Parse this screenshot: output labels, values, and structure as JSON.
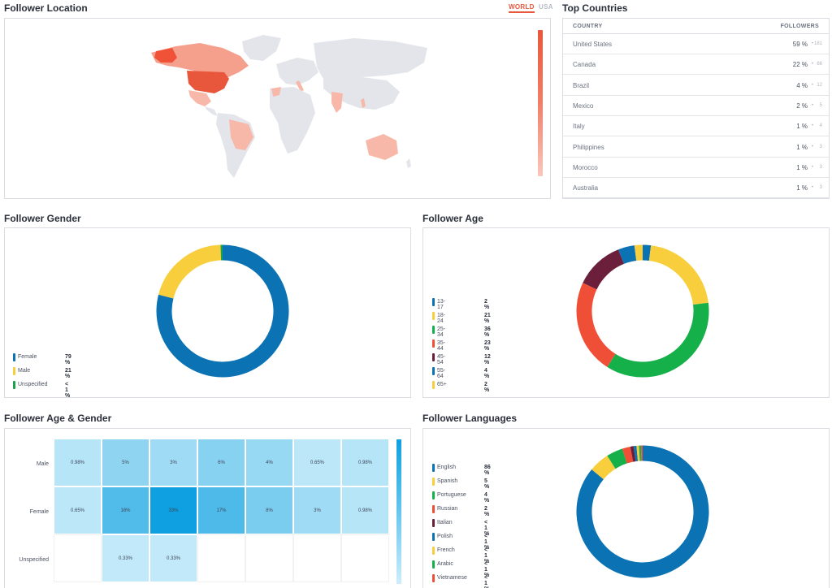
{
  "location": {
    "title": "Follower Location",
    "toggle_world": "WORLD",
    "toggle_usa": "USA"
  },
  "countries": {
    "title": "Top Countries",
    "col_country": "COUNTRY",
    "col_followers": "FOLLOWERS",
    "rows": [
      {
        "name": "United States",
        "pct": "59 %",
        "count": "181"
      },
      {
        "name": "Canada",
        "pct": "22 %",
        "count": "66"
      },
      {
        "name": "Brazil",
        "pct": "4 %",
        "count": "12"
      },
      {
        "name": "Mexico",
        "pct": "2 %",
        "count": "5"
      },
      {
        "name": "Italy",
        "pct": "1 %",
        "count": "4"
      },
      {
        "name": "Philippines",
        "pct": "1 %",
        "count": "3"
      },
      {
        "name": "Morocco",
        "pct": "1 %",
        "count": "3"
      },
      {
        "name": "Australia",
        "pct": "1 %",
        "count": "3"
      }
    ]
  },
  "gender": {
    "title": "Follower Gender",
    "legend": [
      {
        "label": "Female",
        "value": "79 %",
        "color": "#0b73b3"
      },
      {
        "label": "Male",
        "value": "21 %",
        "color": "#f9ce3d"
      },
      {
        "label": "Unspecified",
        "value": "< 1 %",
        "color": "#16a34a"
      }
    ],
    "slices": [
      79,
      20.5,
      0.5
    ]
  },
  "age": {
    "title": "Follower Age",
    "legend": [
      {
        "label": "13-17",
        "value": "2 %",
        "color": "#0b73b3"
      },
      {
        "label": "18-24",
        "value": "21 %",
        "color": "#f9ce3d"
      },
      {
        "label": "25-34",
        "value": "36 %",
        "color": "#16b04a"
      },
      {
        "label": "35-44",
        "value": "23 %",
        "color": "#f04f37"
      },
      {
        "label": "45-54",
        "value": "12 %",
        "color": "#6b1f3a"
      },
      {
        "label": "55-64",
        "value": "4 %",
        "color": "#0b73b3"
      },
      {
        "label": "65+",
        "value": "2 %",
        "color": "#f9ce3d"
      }
    ],
    "slices": [
      2,
      21,
      36,
      23,
      12,
      4,
      2
    ]
  },
  "age_gender": {
    "title": "Follower Age & Gender",
    "rows": [
      "Male",
      "Female",
      "Unspecified"
    ],
    "cells": [
      [
        "0.98%",
        "5%",
        "3%",
        "6%",
        "4%",
        "0.65%",
        "0.98%"
      ],
      [
        "0.65%",
        "16%",
        "33%",
        "17%",
        "8%",
        "3%",
        "0.98%"
      ],
      [
        "",
        "0.33%",
        "0.33%",
        "",
        "",
        "",
        ""
      ]
    ],
    "values": [
      [
        0.98,
        5,
        3,
        6,
        4,
        0.65,
        0.98
      ],
      [
        0.65,
        16,
        33,
        17,
        8,
        3,
        0.98
      ],
      [
        0,
        0.33,
        0.33,
        0,
        0,
        0,
        0
      ]
    ]
  },
  "languages": {
    "title": "Follower Languages",
    "legend": [
      {
        "label": "English",
        "value": "86 %",
        "color": "#0b73b3"
      },
      {
        "label": "Spanish",
        "value": "5 %",
        "color": "#f9ce3d"
      },
      {
        "label": "Portuguese",
        "value": "4 %",
        "color": "#16b04a"
      },
      {
        "label": "Russian",
        "value": "2 %",
        "color": "#f04f37"
      },
      {
        "label": "Italian",
        "value": "< 1 %",
        "color": "#6b1f3a"
      },
      {
        "label": "Polish",
        "value": "< 1 %",
        "color": "#0b73b3"
      },
      {
        "label": "French",
        "value": "< 1 %",
        "color": "#f9ce3d"
      },
      {
        "label": "Arabic",
        "value": "< 1 %",
        "color": "#16b04a"
      },
      {
        "label": "Vietnamese",
        "value": "< 1 %",
        "color": "#f04f37"
      }
    ],
    "slices": [
      86,
      5,
      4,
      2,
      0.8,
      0.7,
      0.6,
      0.5,
      0.4
    ]
  }
}
